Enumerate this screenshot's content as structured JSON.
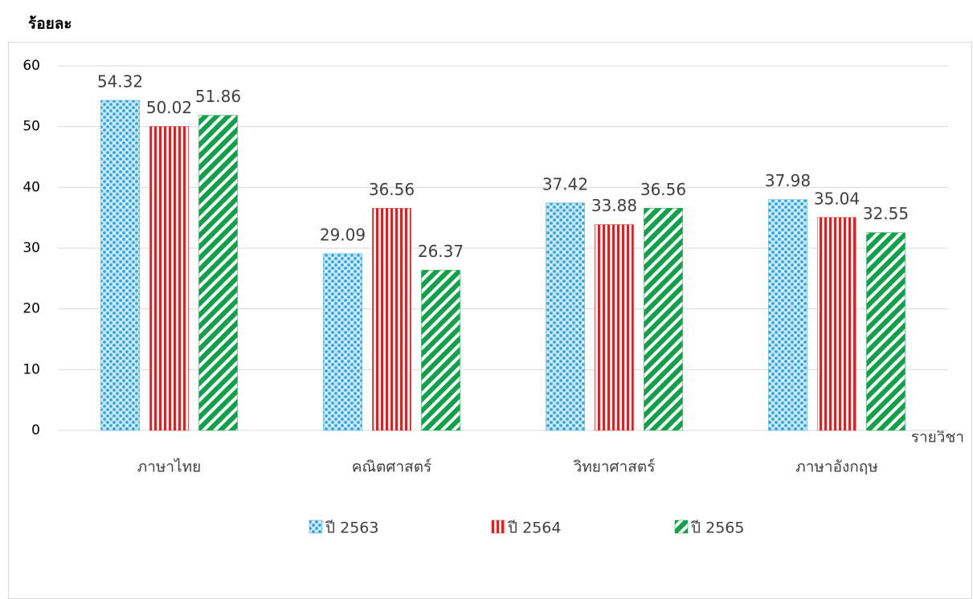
{
  "chart_data": {
    "type": "bar",
    "y_axis_label": "ร้อยละ",
    "x_axis_label": "รายวิชา",
    "categories": [
      "ภาษาไทย",
      "คณิตศาสตร์",
      "วิทยาศาสตร์",
      "ภาษาอังกฤษ"
    ],
    "series": [
      {
        "name": "ปี 2563",
        "color": "#3aa6d8",
        "values": [
          54.32,
          29.09,
          37.42,
          37.98
        ]
      },
      {
        "name": "ปี 2564",
        "color": "#e02020",
        "values": [
          50.02,
          36.56,
          33.88,
          35.04
        ]
      },
      {
        "name": "ปี 2565",
        "color": "#12a048",
        "values": [
          51.86,
          26.37,
          36.56,
          32.55
        ]
      }
    ],
    "ylim": [
      0,
      60
    ],
    "yticks": [
      0,
      10,
      20,
      30,
      40,
      50,
      60
    ],
    "grid": true,
    "legend": "bottom"
  }
}
